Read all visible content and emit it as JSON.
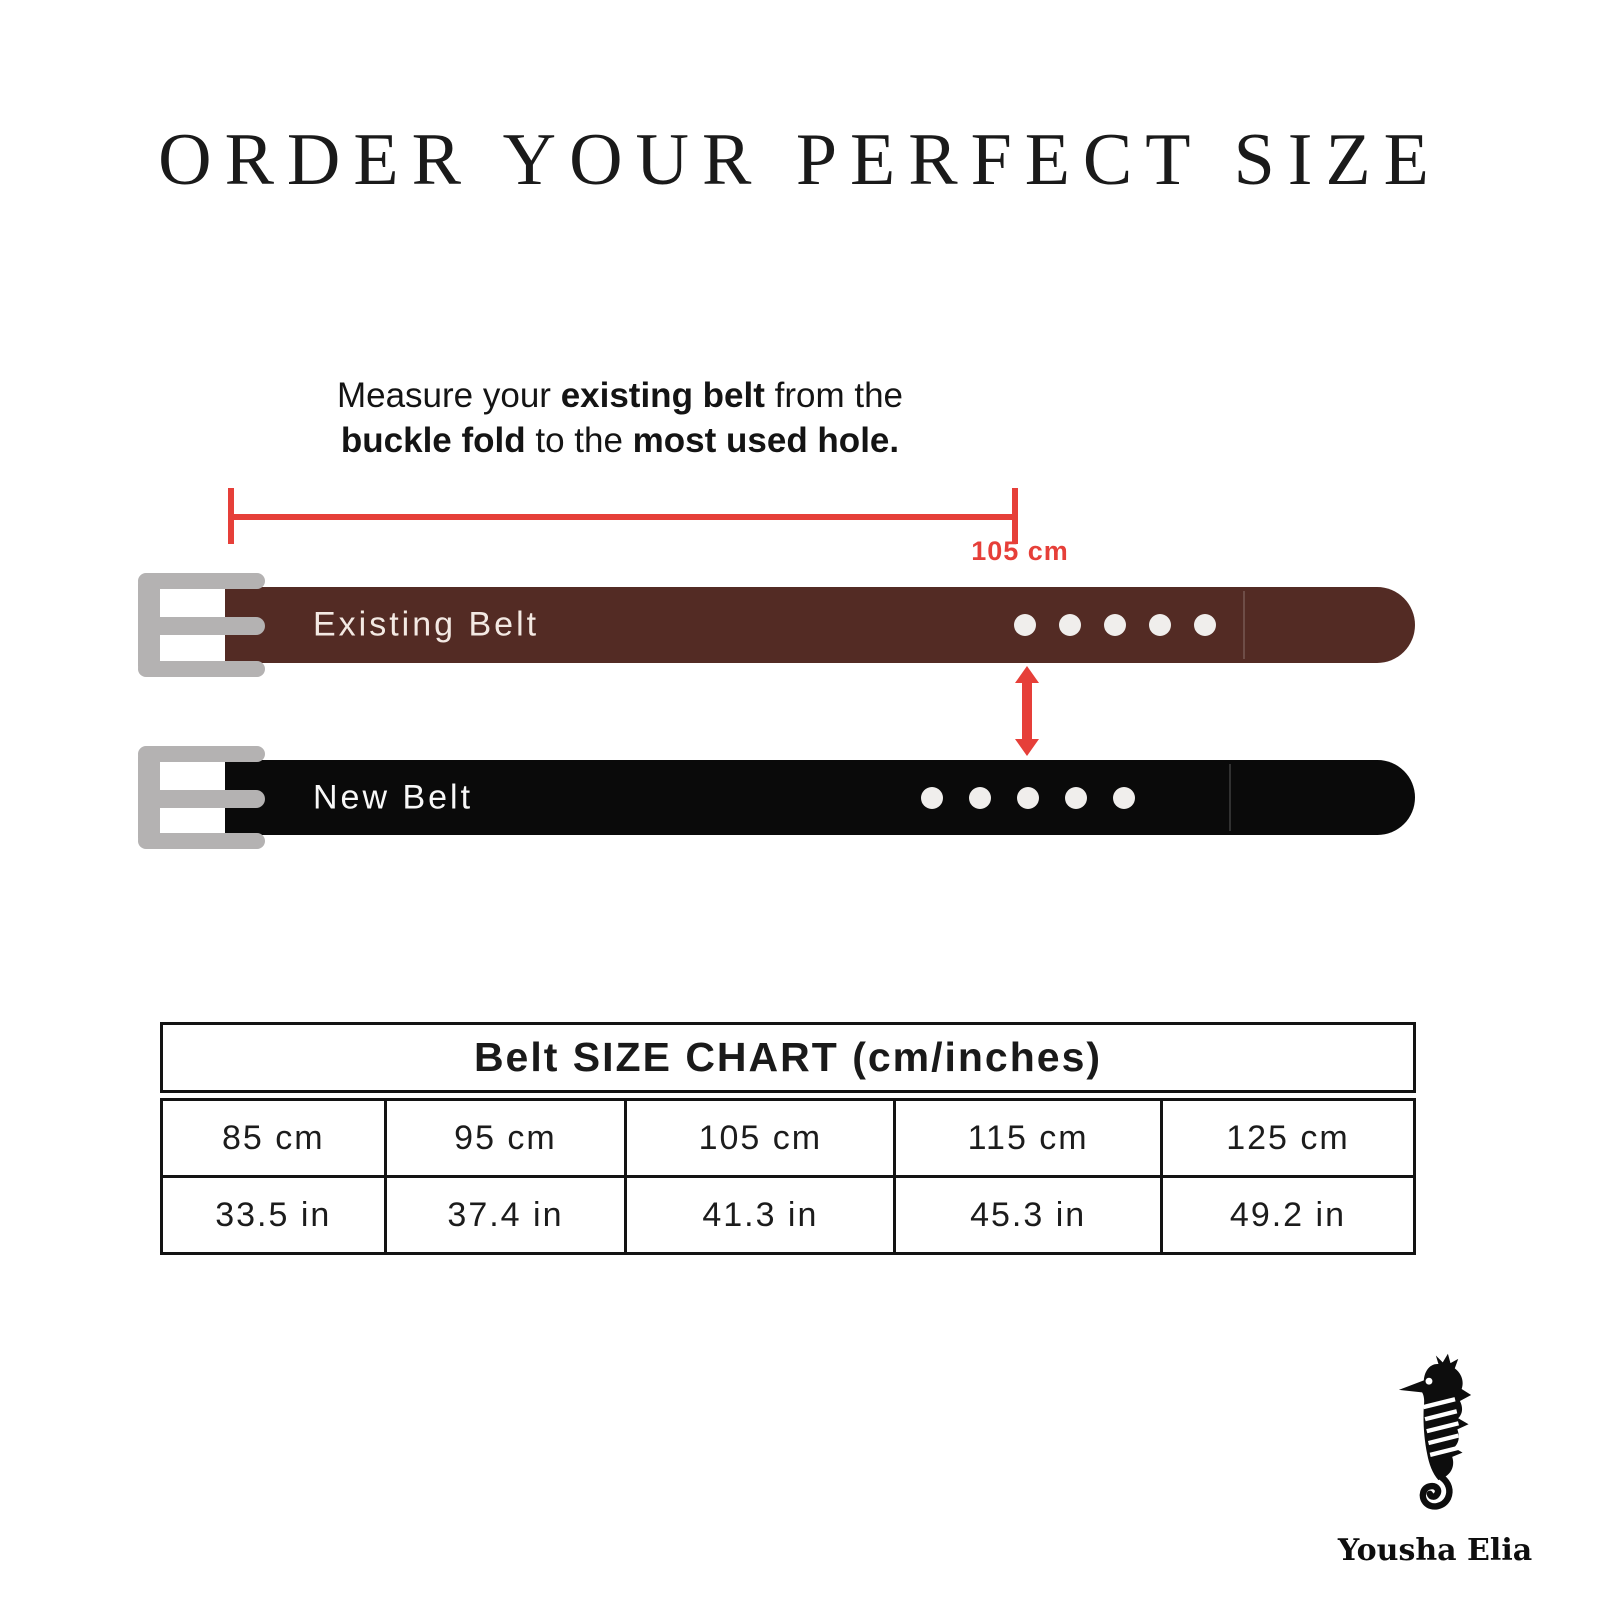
{
  "page": {
    "background": "#ffffff"
  },
  "title": "ORDER YOUR PERFECT SIZE",
  "instruction": {
    "lines": [
      [
        {
          "t": "Measure your ",
          "b": false
        },
        {
          "t": "existing belt",
          "b": true
        },
        {
          "t": " from the",
          "b": false
        }
      ],
      [
        {
          "t": "buckle fold",
          "b": true
        },
        {
          "t": " to the ",
          "b": false
        },
        {
          "t": "most used hole.",
          "b": true
        }
      ]
    ]
  },
  "measurement": {
    "label": "105 cm",
    "color": "#e63f39"
  },
  "belts": [
    {
      "label": "Existing Belt",
      "color": "#532b24",
      "text_color": "#f3e9e3",
      "holes": 5
    },
    {
      "label": "New Belt",
      "color": "#0a0a0a",
      "text_color": "#f8f8f8",
      "holes": 5
    }
  ],
  "buckle_color": "#b4b2b2",
  "hole_color": "#f0eeec",
  "size_chart": {
    "title": "Belt SIZE CHART (cm/inches)",
    "rows": [
      [
        "85 cm",
        "95 cm",
        "105 cm",
        "115 cm",
        "125 cm"
      ],
      [
        "33.5 in",
        "37.4 in",
        "41.3 in",
        "45.3 in",
        "49.2 in"
      ]
    ]
  },
  "logo": {
    "brand": "Yousha Elia",
    "icon": "seahorse"
  }
}
